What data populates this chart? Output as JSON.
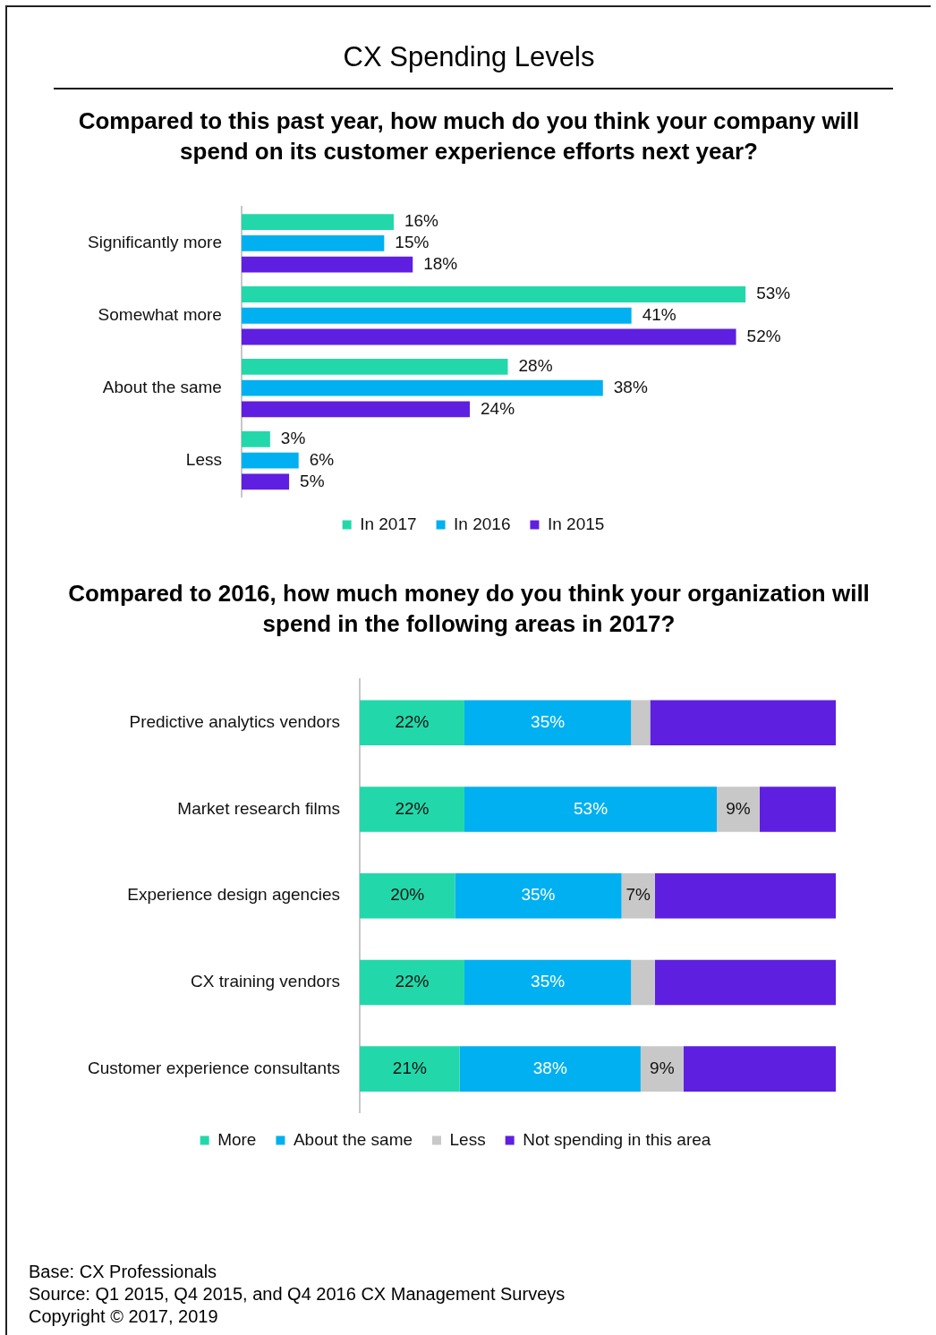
{
  "chart_data": [
    {
      "type": "bar",
      "orientation": "horizontal",
      "title": "CX Spending Levels",
      "subtitle": "Compared to this past year, how much do you think your company will spend on its customer experience efforts next year?",
      "categories": [
        "Significantly more",
        "Somewhat more",
        "About the same",
        "Less"
      ],
      "legend": "bottom",
      "series": [
        {
          "name": "In 2017",
          "color": "#22d8aa",
          "values": [
            16,
            53,
            28,
            3
          ],
          "value_labels": [
            "16%",
            "53%",
            "28%",
            "3%"
          ]
        },
        {
          "name": "In 2016",
          "color": "#00b0f0",
          "values": [
            15,
            41,
            38,
            6
          ],
          "value_labels": [
            "15%",
            "41%",
            "38%",
            "6%"
          ]
        },
        {
          "name": "In 2015",
          "color": "#5f1fe0",
          "values": [
            18,
            52,
            24,
            5
          ],
          "value_labels": [
            "18%",
            "52%",
            "24%",
            "5%"
          ]
        }
      ]
    },
    {
      "type": "bar",
      "orientation": "horizontal",
      "stacked": true,
      "title": "Compared to 2016, how much money do you think your organization will spend in the following areas in 2017?",
      "categories": [
        "Predictive analytics vendors",
        "Market research films",
        "Experience design agencies",
        "CX training vendors",
        "Customer experience consultants"
      ],
      "legend": "bottom",
      "series": [
        {
          "name": "More",
          "color": "#22d8aa",
          "values": [
            22,
            22,
            20,
            22,
            21
          ],
          "value_labels": [
            "22%",
            "22%",
            "20%",
            "22%",
            "21%"
          ]
        },
        {
          "name": "About the same",
          "color": "#00b0f0",
          "values": [
            35,
            53,
            35,
            35,
            38
          ],
          "value_labels": [
            "35%",
            "53%",
            "35%",
            "35%",
            "38%"
          ]
        },
        {
          "name": "Less",
          "color": "#c8c8c8",
          "values": [
            4,
            9,
            7,
            5,
            9
          ],
          "value_labels": [
            null,
            "9%",
            "7%",
            null,
            "9%"
          ]
        },
        {
          "name": "Not spending in this area",
          "color": "#5f1fe0",
          "values": [
            39,
            16,
            38,
            38,
            32
          ],
          "value_labels": [
            null,
            null,
            null,
            null,
            null
          ]
        }
      ],
      "annotations": [
        "Base:   CX Professionals",
        "Source:   Q1 2015, Q4 2015, and Q4 2016 CX Management Surveys",
        "Copyright © 2017, 2019"
      ]
    }
  ]
}
